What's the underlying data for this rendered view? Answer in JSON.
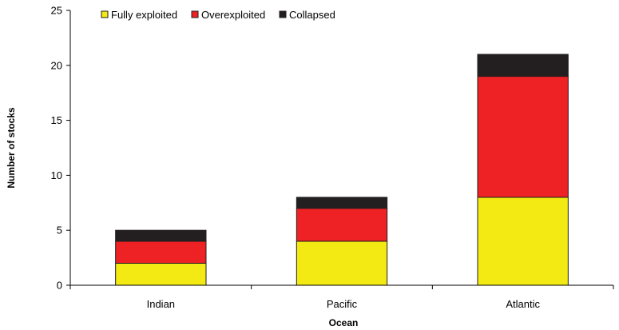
{
  "chart_data": {
    "type": "bar",
    "stacked": true,
    "categories": [
      "Indian",
      "Pacific",
      "Atlantic"
    ],
    "series": [
      {
        "name": "Fully exploited",
        "values": [
          2,
          4,
          8
        ],
        "color": "#f2ea12"
      },
      {
        "name": "Overexploited",
        "values": [
          2,
          3,
          11
        ],
        "color": "#ee2124"
      },
      {
        "name": "Collapsed",
        "values": [
          1,
          1,
          2
        ],
        "color": "#231f20"
      }
    ],
    "xlabel": "Ocean",
    "ylabel": "Number of stocks",
    "ylim": [
      0,
      25
    ],
    "yticks": [
      0,
      5,
      10,
      15,
      20,
      25
    ],
    "grid": false,
    "legend_position": "top-left"
  }
}
